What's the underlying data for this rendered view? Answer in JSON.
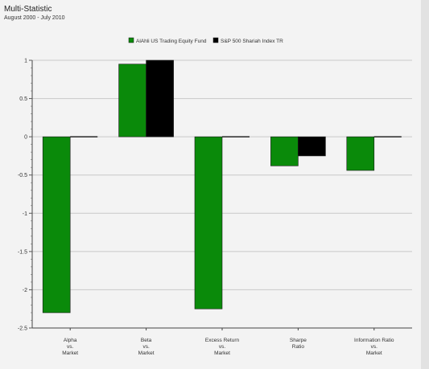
{
  "header": {
    "title": "Multi-Statistic",
    "subtitle": "August 2000 - July 2010"
  },
  "colors": {
    "fund": "#0a8a0a",
    "index": "#000000",
    "grid": "#c8c8c8",
    "background": "#f3f3f3"
  },
  "chart_data": {
    "type": "bar",
    "title": "Multi-Statistic",
    "subtitle": "August 2000 - July 2010",
    "categories": [
      [
        "Alpha",
        "vs.",
        "Market"
      ],
      [
        "Beta",
        "vs.",
        "Market"
      ],
      [
        "Excess Return",
        "vs.",
        "Market"
      ],
      [
        "Sharpe",
        "Ratio"
      ],
      [
        "Information Ratio",
        "vs.",
        "Market"
      ]
    ],
    "series": [
      {
        "name": "AlAhli US Trading Equity Fund",
        "values": [
          -2.3,
          0.95,
          -2.25,
          -0.38,
          -0.44
        ]
      },
      {
        "name": "S&P 500 Shariah Index TR",
        "values": [
          0,
          1.0,
          0,
          -0.25,
          0
        ]
      }
    ],
    "yticks": [
      "1",
      "0.5",
      "0",
      "-0.5",
      "-1",
      "-1.5",
      "-2",
      "-2.5"
    ],
    "ylim": [
      -2.5,
      1
    ],
    "grid": true,
    "legend": "top-center"
  }
}
